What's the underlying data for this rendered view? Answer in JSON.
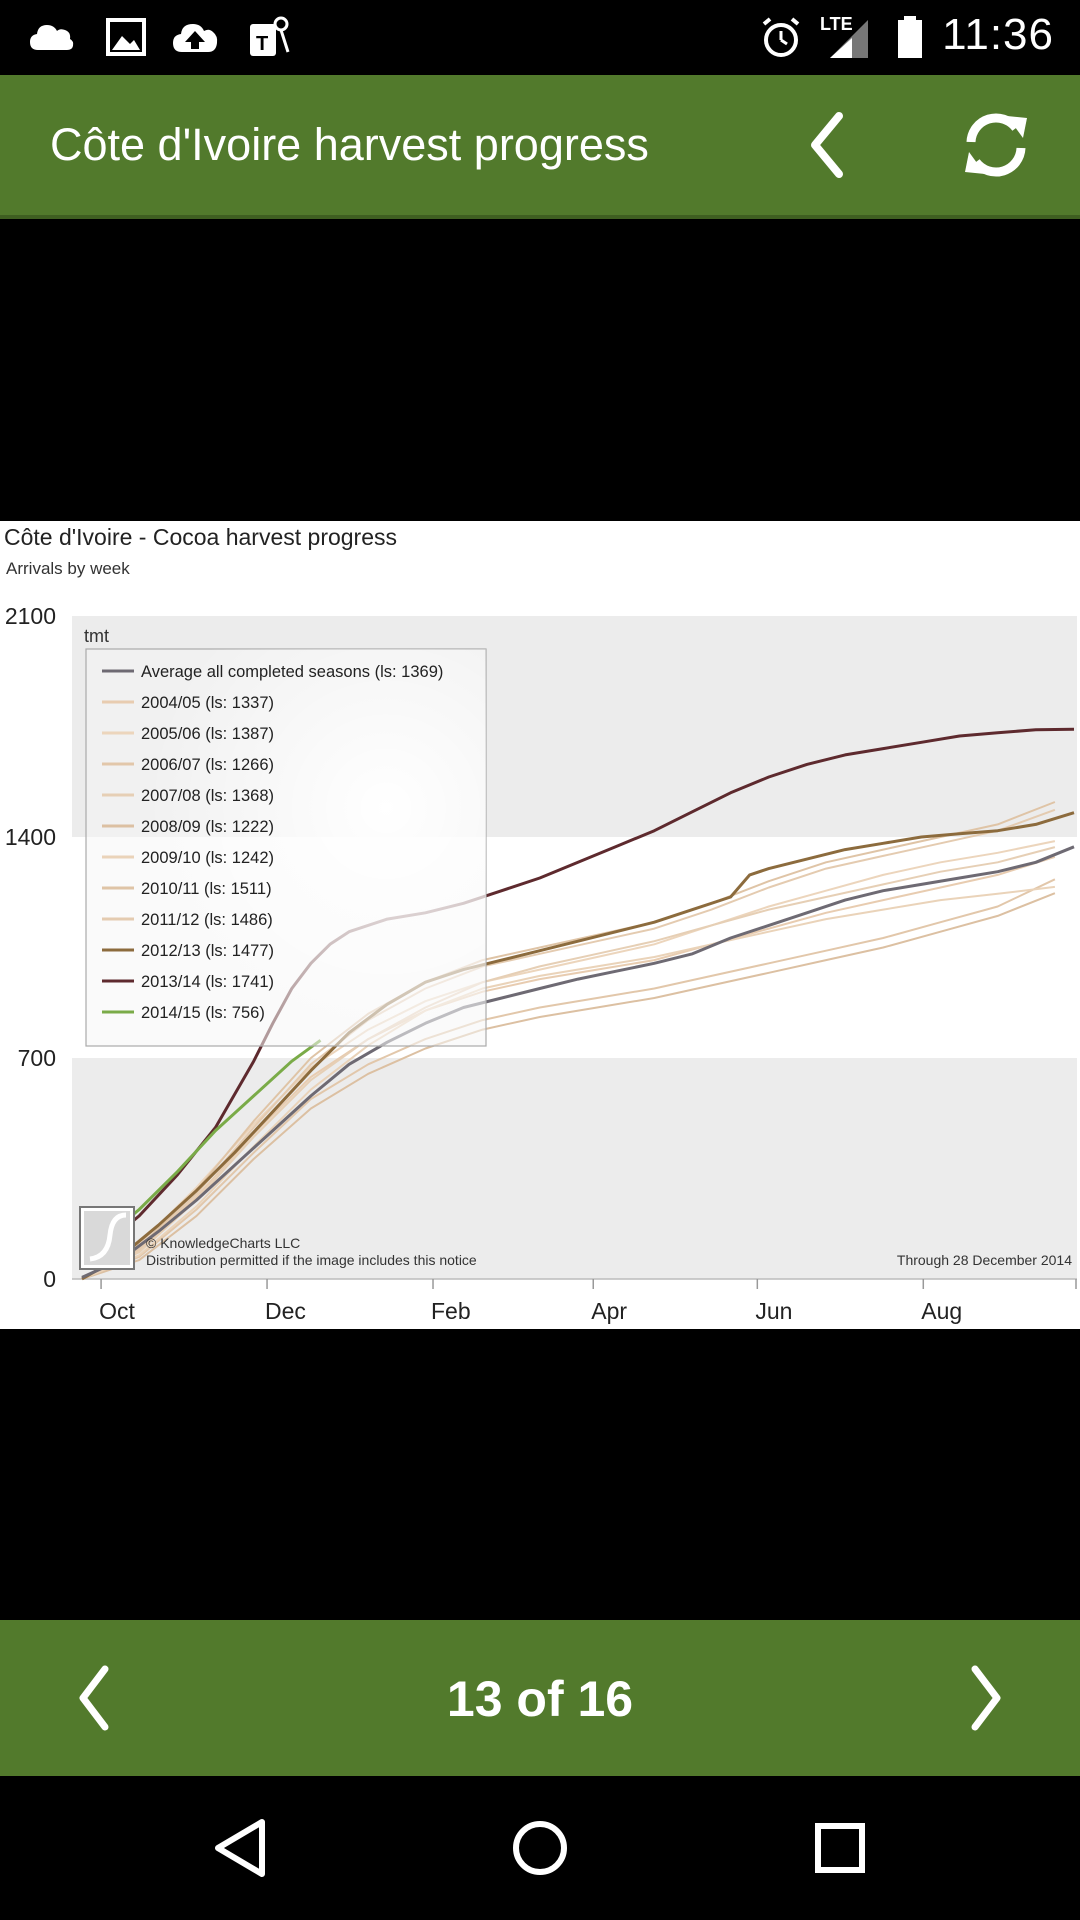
{
  "status_bar": {
    "time": "11:36",
    "network": "LTE",
    "left_icons": [
      "cloud-icon",
      "image-icon",
      "upload-icon",
      "tmobile-icon"
    ],
    "right_icons": [
      "alarm-icon",
      "signal-icon",
      "battery-icon"
    ]
  },
  "app_bar": {
    "title": "Côte d'Ivoire harvest progress",
    "back_icon": "chevron-left-icon",
    "refresh_icon": "refresh-icon"
  },
  "chart": {
    "title": "Côte d'Ivoire - Cocoa harvest progress",
    "subtitle": "Arrivals by week",
    "unit_label": "tmt",
    "copyright": "© KnowledgeCharts LLC",
    "distribution_note": "Distribution permitted if the image includes this notice",
    "through_note": "Through 28 December 2014"
  },
  "chart_data": {
    "type": "line",
    "title": "Côte d'Ivoire - Cocoa harvest progress",
    "subtitle": "Arrivals by week",
    "ylabel": "tmt",
    "xlabel": "",
    "ylim": [
      0,
      2100
    ],
    "yticks": [
      0,
      700,
      1400,
      2100
    ],
    "xlim": [
      0,
      52
    ],
    "xticks": [
      {
        "week": 1,
        "label": "Oct"
      },
      {
        "week": 9.7,
        "label": "Dec"
      },
      {
        "week": 18.4,
        "label": "Feb"
      },
      {
        "week": 26.8,
        "label": "Apr"
      },
      {
        "week": 35.4,
        "label": "Jun"
      },
      {
        "week": 44.1,
        "label": "Aug"
      }
    ],
    "legend_position": "top-left",
    "series": [
      {
        "name": "Average all completed seasons (ls: 1369)",
        "color": "#6e6a73",
        "width": 3,
        "x": [
          0,
          2,
          4,
          6,
          8,
          10,
          12,
          14,
          16,
          18,
          20,
          22,
          24,
          26,
          28,
          30,
          32,
          34,
          36,
          38,
          40,
          42,
          44,
          46,
          48,
          50,
          52
        ],
        "y": [
          5,
          60,
          150,
          250,
          360,
          470,
          580,
          680,
          750,
          810,
          860,
          890,
          920,
          950,
          975,
          1000,
          1030,
          1080,
          1120,
          1160,
          1200,
          1230,
          1250,
          1270,
          1290,
          1320,
          1369
        ]
      },
      {
        "name": "2004/05 (ls: 1337)",
        "color": "#e8ccb0",
        "width": 2,
        "x": [
          0,
          3,
          6,
          9,
          12,
          15,
          18,
          21,
          24,
          27,
          30,
          33,
          36,
          39,
          42,
          45,
          48,
          51
        ],
        "y": [
          0,
          90,
          260,
          460,
          640,
          760,
          850,
          910,
          950,
          980,
          1010,
          1060,
          1110,
          1160,
          1200,
          1240,
          1280,
          1337
        ]
      },
      {
        "name": "2005/06 (ls: 1387)",
        "color": "#ecd5bc",
        "width": 2,
        "x": [
          0,
          3,
          6,
          9,
          12,
          15,
          18,
          21,
          24,
          27,
          30,
          33,
          36,
          39,
          42,
          45,
          48,
          51
        ],
        "y": [
          0,
          110,
          290,
          490,
          670,
          790,
          880,
          940,
          980,
          1020,
          1060,
          1120,
          1180,
          1230,
          1280,
          1320,
          1350,
          1387
        ]
      },
      {
        "name": "2006/07 (ls: 1266)",
        "color": "#e2c7aa",
        "width": 2,
        "x": [
          0,
          3,
          6,
          9,
          12,
          15,
          18,
          21,
          24,
          27,
          30,
          33,
          36,
          39,
          42,
          45,
          48,
          51
        ],
        "y": [
          0,
          70,
          220,
          400,
          570,
          680,
          760,
          820,
          860,
          890,
          920,
          960,
          1000,
          1040,
          1080,
          1130,
          1180,
          1266
        ]
      },
      {
        "name": "2007/08 (ls: 1368)",
        "color": "#e6cfb5",
        "width": 2,
        "x": [
          0,
          3,
          6,
          9,
          12,
          15,
          18,
          21,
          24,
          27,
          30,
          33,
          36,
          39,
          42,
          45,
          48,
          51
        ],
        "y": [
          0,
          85,
          250,
          450,
          630,
          760,
          860,
          940,
          990,
          1030,
          1070,
          1120,
          1170,
          1210,
          1250,
          1290,
          1320,
          1368
        ]
      },
      {
        "name": "2008/09 (ls: 1222)",
        "color": "#dcc0a2",
        "width": 2,
        "x": [
          0,
          3,
          6,
          9,
          12,
          15,
          18,
          21,
          24,
          27,
          30,
          33,
          36,
          39,
          42,
          45,
          48,
          51
        ],
        "y": [
          0,
          60,
          200,
          380,
          540,
          650,
          730,
          790,
          830,
          860,
          890,
          930,
          970,
          1010,
          1050,
          1100,
          1150,
          1222
        ]
      },
      {
        "name": "2009/10 (ls: 1242)",
        "color": "#ead3b9",
        "width": 2,
        "x": [
          0,
          3,
          6,
          9,
          12,
          15,
          18,
          21,
          24,
          27,
          30,
          33,
          36,
          39,
          42,
          45,
          48,
          51
        ],
        "y": [
          0,
          75,
          230,
          420,
          600,
          740,
          850,
          920,
          960,
          990,
          1020,
          1060,
          1100,
          1140,
          1170,
          1200,
          1220,
          1242
        ]
      },
      {
        "name": "2010/11 (ls: 1511)",
        "color": "#dfc4a6",
        "width": 2,
        "x": [
          0,
          3,
          6,
          9,
          12,
          15,
          18,
          21,
          24,
          27,
          30,
          33,
          36,
          39,
          42,
          45,
          48,
          51
        ],
        "y": [
          0,
          100,
          280,
          500,
          700,
          840,
          940,
          1010,
          1050,
          1090,
          1130,
          1190,
          1260,
          1320,
          1360,
          1400,
          1440,
          1511
        ]
      },
      {
        "name": "2011/12 (ls: 1486)",
        "color": "#e4cbb0",
        "width": 2,
        "x": [
          0,
          3,
          6,
          9,
          12,
          15,
          18,
          21,
          24,
          27,
          30,
          33,
          36,
          39,
          42,
          45,
          48,
          51
        ],
        "y": [
          0,
          95,
          270,
          480,
          680,
          820,
          920,
          990,
          1030,
          1070,
          1110,
          1170,
          1240,
          1300,
          1340,
          1380,
          1420,
          1486
        ]
      },
      {
        "name": "2012/13 (ls: 1477)",
        "color": "#8c6b3d",
        "width": 3,
        "x": [
          0,
          2,
          4,
          6,
          8,
          10,
          12,
          14,
          16,
          18,
          20,
          22,
          24,
          26,
          28,
          30,
          32,
          34,
          35,
          36,
          38,
          40,
          42,
          44,
          46,
          48,
          50,
          52
        ],
        "y": [
          0,
          70,
          170,
          280,
          400,
          530,
          660,
          780,
          870,
          940,
          980,
          1010,
          1040,
          1070,
          1100,
          1130,
          1170,
          1210,
          1280,
          1300,
          1330,
          1360,
          1380,
          1400,
          1410,
          1420,
          1440,
          1477
        ]
      },
      {
        "name": "2013/14 (ls: 1741)",
        "color": "#5e2a2e",
        "width": 3,
        "x": [
          1,
          3,
          5,
          7,
          9,
          10,
          11,
          12,
          13,
          14,
          16,
          18,
          20,
          22,
          24,
          26,
          28,
          30,
          32,
          34,
          36,
          38,
          40,
          42,
          44,
          46,
          48,
          50,
          52
        ],
        "y": [
          100,
          200,
          330,
          480,
          690,
          810,
          920,
          1000,
          1060,
          1100,
          1140,
          1160,
          1190,
          1230,
          1270,
          1320,
          1370,
          1420,
          1480,
          1540,
          1590,
          1630,
          1660,
          1680,
          1700,
          1720,
          1730,
          1740,
          1741
        ]
      },
      {
        "name": "2014/15 (ls: 756)",
        "color": "#7aab48",
        "width": 3,
        "x": [
          1,
          3,
          5,
          7,
          9,
          11,
          12.5
        ],
        "y": [
          120,
          220,
          340,
          470,
          580,
          690,
          756
        ]
      }
    ]
  },
  "pager": {
    "text": "13 of 16",
    "prev_icon": "chevron-left-icon",
    "next_icon": "chevron-right-icon"
  },
  "nav_bar": {
    "icons": [
      "back-triangle-icon",
      "home-circle-icon",
      "recents-square-icon"
    ]
  }
}
